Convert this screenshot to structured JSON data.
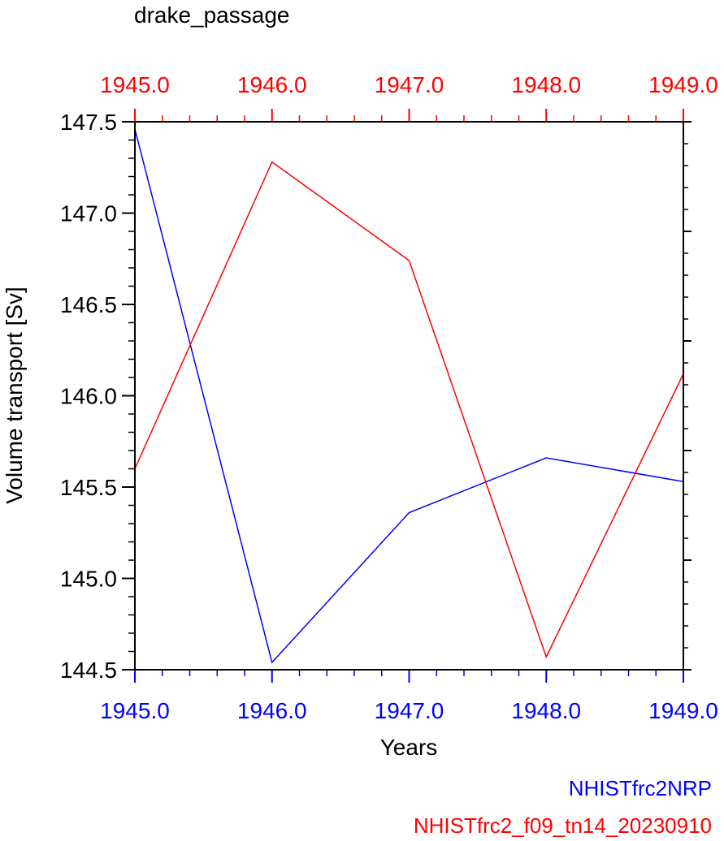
{
  "chart_data": {
    "type": "line",
    "title": "drake_passage",
    "xlabel": "Years",
    "ylabel": "Volume transport [Sv]",
    "x": [
      1945.0,
      1946.0,
      1947.0,
      1948.0,
      1949.0
    ],
    "xlim": [
      1945.0,
      1949.0
    ],
    "ylim": [
      144.5,
      147.5
    ],
    "x_ticks": [
      "1945.0",
      "1946.0",
      "1947.0",
      "1948.0",
      "1949.0"
    ],
    "y_ticks": [
      "144.5",
      "145.0",
      "145.5",
      "146.0",
      "146.5",
      "147.0",
      "147.5"
    ],
    "grid": false,
    "legend_position": "bottom-right",
    "series": [
      {
        "name": "NHISTfrc2NRP",
        "color": "#0000ff",
        "axis": "bottom",
        "values": [
          147.46,
          144.54,
          145.36,
          145.66,
          145.53
        ]
      },
      {
        "name": "NHISTfrc2_f09_tn14_20230910",
        "color": "#ff0000",
        "axis": "top",
        "values": [
          145.6,
          147.28,
          146.74,
          144.57,
          146.12
        ]
      }
    ]
  }
}
